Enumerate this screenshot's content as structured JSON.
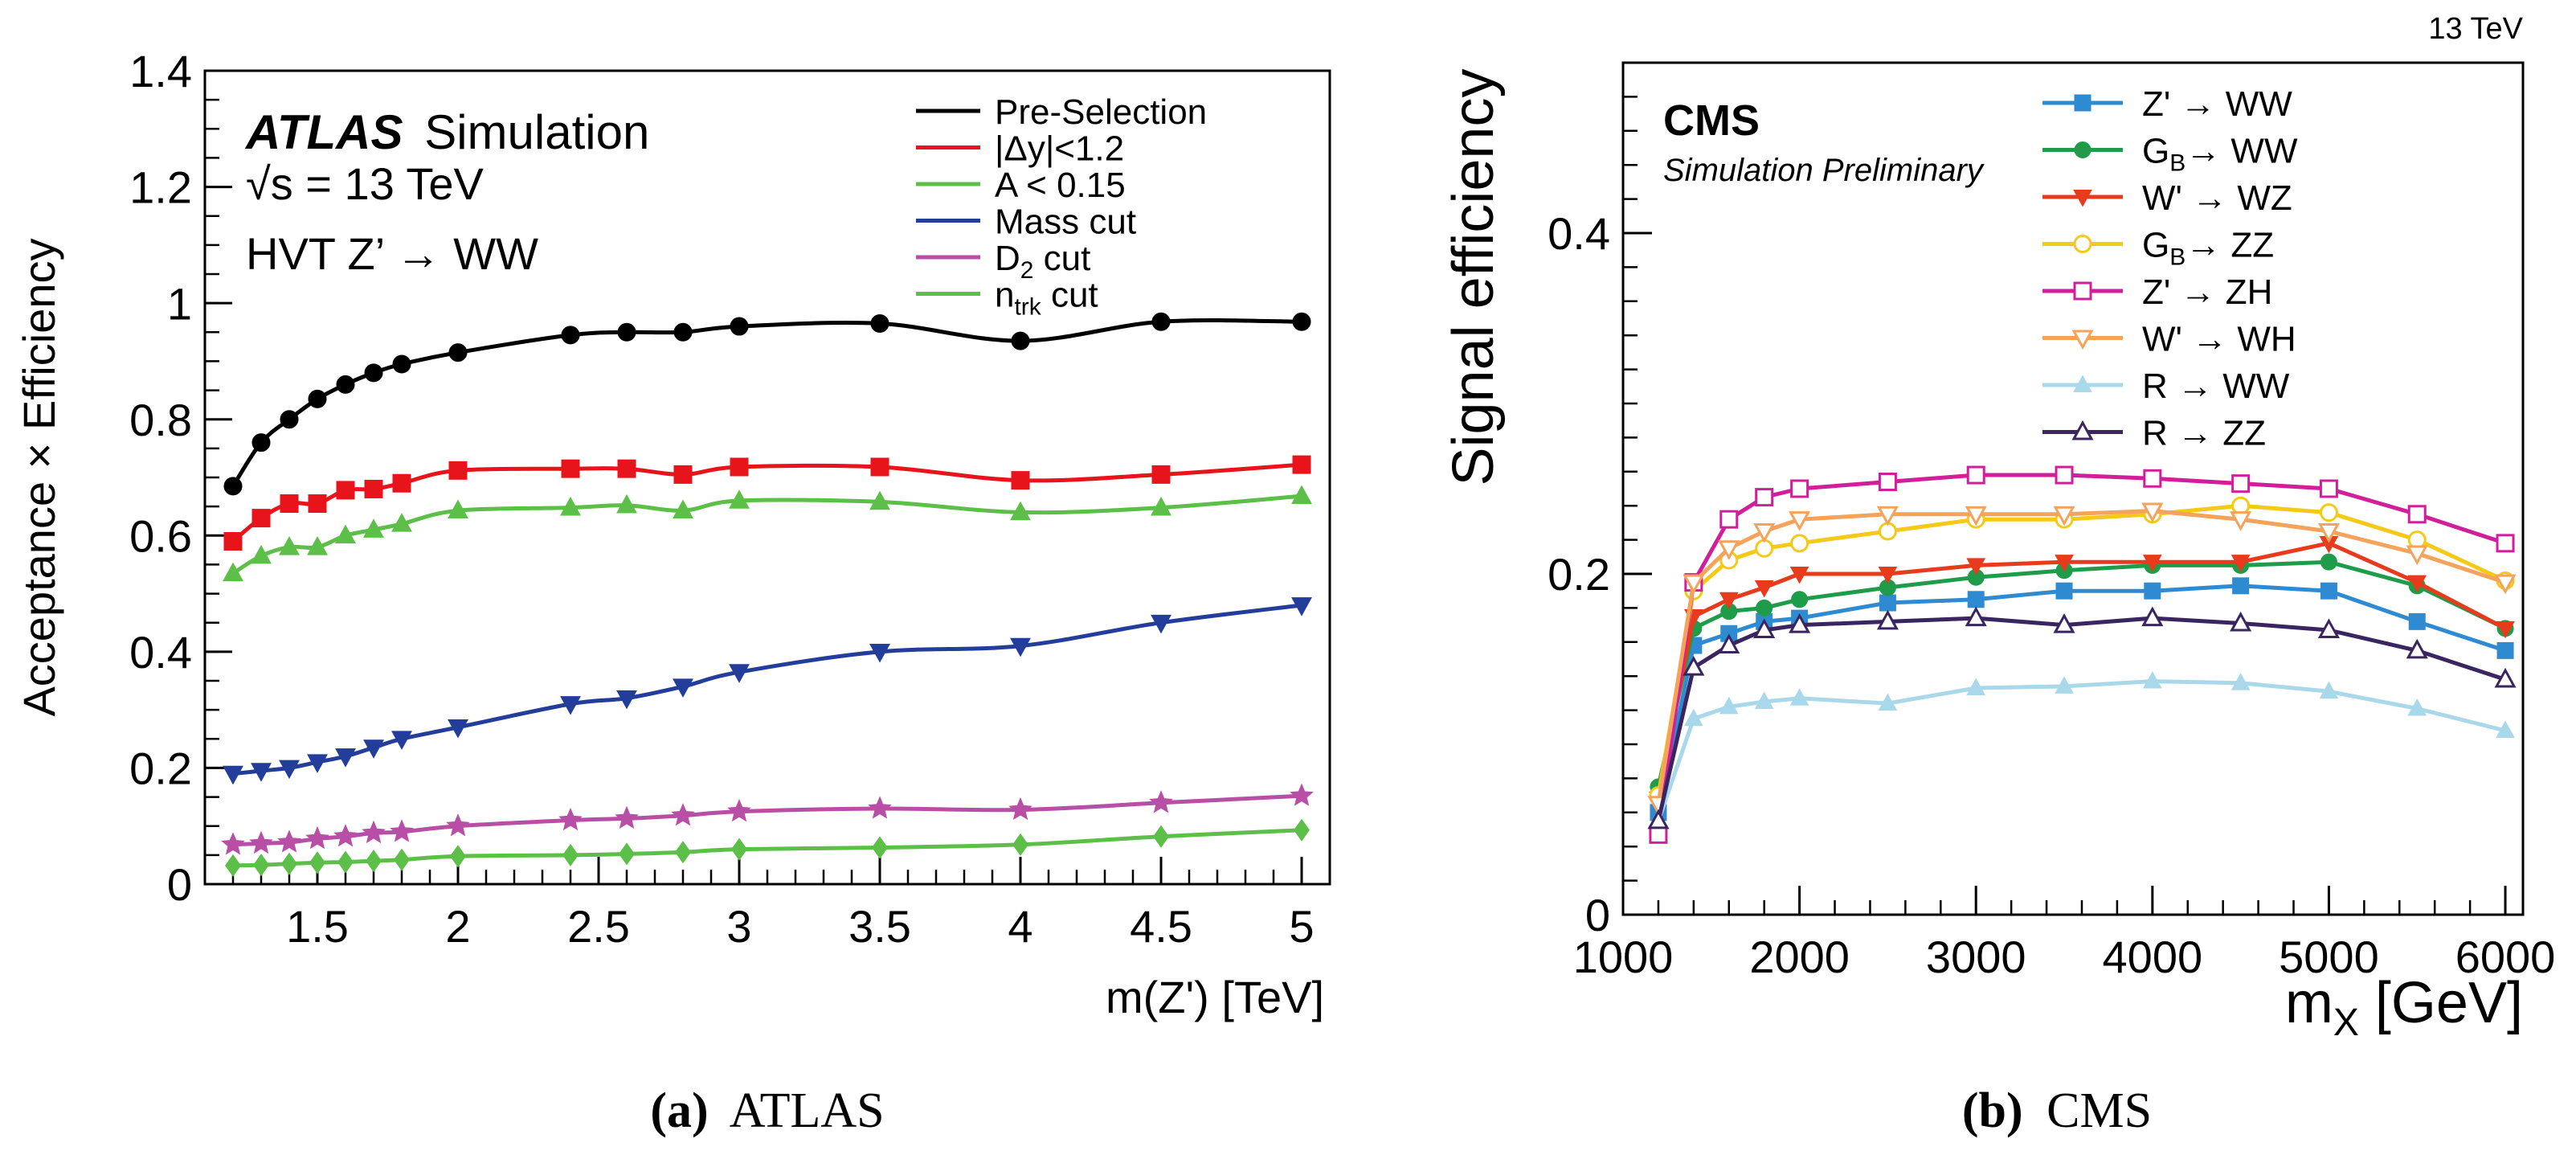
{
  "chart_data": [
    {
      "id": "atlas",
      "type": "line",
      "caption_label": "(a)",
      "caption_text": "ATLAS",
      "experiment_label": "ATLAS",
      "experiment_sublabel": "Simulation",
      "energy_label": "√s = 13 TeV",
      "process_label": "HVT Z’ → WW",
      "xlabel": "m(Z') [TeV]",
      "ylabel": "Acceptance × Efficiency",
      "xlim": [
        1.1,
        5.1
      ],
      "ylim": [
        0,
        1.4
      ],
      "x_ticks": [
        1.5,
        2,
        2.5,
        3,
        3.5,
        4,
        4.5,
        5
      ],
      "x_tick_labels": [
        "1.5",
        "2",
        "2.5",
        "3",
        "3.5",
        "4",
        "4.5",
        "5"
      ],
      "y_ticks": [
        0,
        0.2,
        0.4,
        0.6,
        0.8,
        1,
        1.2,
        1.4
      ],
      "y_tick_labels": [
        "0",
        "0.2",
        "0.4",
        "0.6",
        "0.8",
        "1",
        "1.2",
        "1.4"
      ],
      "x": [
        1.2,
        1.3,
        1.4,
        1.5,
        1.6,
        1.7,
        1.8,
        2.0,
        2.4,
        2.6,
        2.8,
        3.0,
        3.5,
        4.0,
        4.5,
        5.0
      ],
      "series": [
        {
          "name": "Pre-Selection",
          "legend_base": "Pre-Selection",
          "legend_sub": "",
          "legend_tail": "",
          "color": "#000000",
          "marker": "circle",
          "values": [
            0.685,
            0.76,
            0.8,
            0.835,
            0.86,
            0.88,
            0.895,
            0.915,
            0.945,
            0.95,
            0.95,
            0.96,
            0.965,
            0.935,
            0.968,
            0.968
          ]
        },
        {
          "name": "|Δy|<1.2",
          "legend_base": "|Δy|<1.2",
          "legend_sub": "",
          "legend_tail": "",
          "color": "#e8141c",
          "marker": "square",
          "values": [
            0.59,
            0.63,
            0.655,
            0.655,
            0.678,
            0.68,
            0.69,
            0.712,
            0.715,
            0.715,
            0.705,
            0.718,
            0.718,
            0.695,
            0.705,
            0.722
          ]
        },
        {
          "name": "A < 0.15",
          "legend_base": "A < 0.15",
          "legend_sub": "",
          "legend_tail": "",
          "color": "#5cbf48",
          "marker": "triangle-up",
          "values": [
            0.535,
            0.565,
            0.58,
            0.58,
            0.6,
            0.61,
            0.62,
            0.643,
            0.648,
            0.652,
            0.643,
            0.66,
            0.658,
            0.64,
            0.648,
            0.668
          ]
        },
        {
          "name": "Mass cut",
          "legend_base": "Mass cut",
          "legend_sub": "",
          "legend_tail": "",
          "color": "#233d9a",
          "marker": "triangle-down",
          "values": [
            0.19,
            0.195,
            0.2,
            0.21,
            0.22,
            0.235,
            0.25,
            0.27,
            0.31,
            0.32,
            0.34,
            0.365,
            0.4,
            0.41,
            0.45,
            0.48
          ]
        },
        {
          "name": "D2 cut",
          "legend_base": "D",
          "legend_sub": "2",
          "legend_tail": " cut",
          "color": "#b94ea6",
          "marker": "star",
          "values": [
            0.068,
            0.07,
            0.072,
            0.078,
            0.082,
            0.088,
            0.09,
            0.1,
            0.11,
            0.113,
            0.118,
            0.125,
            0.13,
            0.128,
            0.14,
            0.152
          ]
        },
        {
          "name": "ntrk cut",
          "legend_base": "n",
          "legend_sub": "trk",
          "legend_tail": " cut",
          "color": "#5cbf48",
          "marker": "diamond",
          "values": [
            0.032,
            0.033,
            0.035,
            0.037,
            0.038,
            0.04,
            0.042,
            0.048,
            0.05,
            0.052,
            0.055,
            0.06,
            0.063,
            0.068,
            0.082,
            0.093
          ]
        }
      ]
    },
    {
      "id": "cms",
      "type": "line",
      "caption_label": "(b)",
      "caption_text": "CMS",
      "experiment_label": "CMS",
      "experiment_sublabel": "Simulation Preliminary",
      "energy_label": "13 TeV",
      "xlabel_main": "m",
      "xlabel_sub": "X",
      "xlabel_tail": " [GeV]",
      "ylabel": "Signal efficiency",
      "xlim": [
        1000,
        6100
      ],
      "ylim": [
        0,
        0.5
      ],
      "x_ticks": [
        1000,
        2000,
        3000,
        4000,
        5000,
        6000
      ],
      "x_tick_labels": [
        "1000",
        "2000",
        "3000",
        "4000",
        "5000",
        "6000"
      ],
      "y_ticks": [
        0,
        0.2,
        0.4
      ],
      "y_tick_labels": [
        "0",
        "0.2",
        "0.4"
      ],
      "x": [
        1200,
        1400,
        1600,
        1800,
        2000,
        2500,
        3000,
        3500,
        4000,
        4500,
        5000,
        5500,
        6000
      ],
      "series": [
        {
          "name": "Z' → WW",
          "legend_base": "Z' → WW",
          "legend_sub": "",
          "legend_tail": "",
          "color": "#2e8bd1",
          "marker": "square",
          "values": [
            0.06,
            0.158,
            0.165,
            0.172,
            0.174,
            0.183,
            0.185,
            0.19,
            0.19,
            0.193,
            0.19,
            0.172,
            0.155
          ]
        },
        {
          "name": "GB → WW",
          "legend_base": "G",
          "legend_sub": "B",
          "legend_tail": "→ WW",
          "color": "#1f9c4a",
          "marker": "circle",
          "values": [
            0.075,
            0.168,
            0.178,
            0.18,
            0.185,
            0.192,
            0.198,
            0.202,
            0.205,
            0.205,
            0.207,
            0.193,
            0.168
          ]
        },
        {
          "name": "W' → WZ",
          "legend_base": "W' → WZ",
          "legend_sub": "",
          "legend_tail": "",
          "color": "#e83a1c",
          "marker": "triangle-down",
          "values": [
            0.068,
            0.175,
            0.185,
            0.192,
            0.2,
            0.2,
            0.205,
            0.207,
            0.207,
            0.207,
            0.218,
            0.195,
            0.168
          ]
        },
        {
          "name": "GB → ZZ",
          "legend_base": "G",
          "legend_sub": "B",
          "legend_tail": "→ ZZ",
          "color": "#f4c918",
          "marker": "circle-open",
          "values": [
            0.07,
            0.19,
            0.208,
            0.215,
            0.218,
            0.225,
            0.232,
            0.232,
            0.235,
            0.24,
            0.236,
            0.22,
            0.196
          ]
        },
        {
          "name": "Z' → ZH",
          "legend_base": "Z' → ZH",
          "legend_sub": "",
          "legend_tail": "",
          "color": "#d11f9c",
          "marker": "square-open",
          "values": [
            0.047,
            0.195,
            0.232,
            0.245,
            0.25,
            0.254,
            0.258,
            0.258,
            0.256,
            0.253,
            0.25,
            0.235,
            0.218
          ]
        },
        {
          "name": "W' → WH",
          "legend_base": "W' → WH",
          "legend_sub": "",
          "legend_tail": "",
          "color": "#f5a25a",
          "marker": "triangle-down-open",
          "values": [
            0.065,
            0.195,
            0.215,
            0.225,
            0.232,
            0.235,
            0.235,
            0.235,
            0.237,
            0.232,
            0.225,
            0.212,
            0.195
          ]
        },
        {
          "name": "R → WW",
          "legend_base": "R → WW",
          "legend_sub": "",
          "legend_tail": "",
          "color": "#a8d8ea",
          "marker": "triangle-up",
          "values": [
            0.055,
            0.115,
            0.122,
            0.125,
            0.127,
            0.124,
            0.133,
            0.134,
            0.137,
            0.136,
            0.131,
            0.121,
            0.108
          ]
        },
        {
          "name": "R → ZZ",
          "legend_base": "R → ZZ",
          "legend_sub": "",
          "legend_tail": "",
          "color": "#3a2560",
          "marker": "triangle-up-open",
          "values": [
            0.055,
            0.145,
            0.158,
            0.167,
            0.17,
            0.172,
            0.174,
            0.17,
            0.174,
            0.171,
            0.167,
            0.155,
            0.138
          ]
        }
      ]
    }
  ]
}
